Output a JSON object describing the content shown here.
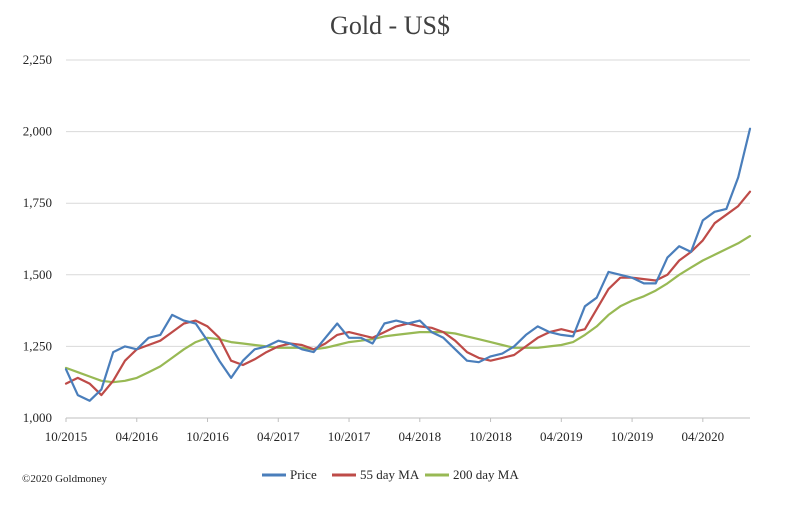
{
  "chart_data": {
    "type": "line",
    "title": "Gold - US$",
    "xlabel": "",
    "ylabel": "",
    "ylim": [
      1000,
      2250
    ],
    "y_ticks": [
      1000,
      1250,
      1500,
      1750,
      2000,
      2250
    ],
    "y_tick_labels": [
      "1,000",
      "1,250",
      "1,500",
      "1,750",
      "2,000",
      "2,250"
    ],
    "x_tick_labels": [
      "10/2015",
      "04/2016",
      "10/2016",
      "04/2017",
      "10/2017",
      "04/2018",
      "10/2018",
      "04/2019",
      "10/2019",
      "04/2020"
    ],
    "x_range_months": [
      "10/2015",
      "08/2020"
    ],
    "grid": "horizontal",
    "legend_position": "bottom",
    "colors": {
      "price": "#4a7ebb",
      "ma55": "#be4b48",
      "ma200": "#98b954"
    },
    "series": [
      {
        "name": "Price",
        "x": [
          "10/2015",
          "11/2015",
          "12/2015",
          "01/2016",
          "02/2016",
          "03/2016",
          "04/2016",
          "05/2016",
          "06/2016",
          "07/2016",
          "08/2016",
          "09/2016",
          "10/2016",
          "11/2016",
          "12/2016",
          "01/2017",
          "02/2017",
          "03/2017",
          "04/2017",
          "05/2017",
          "06/2017",
          "07/2017",
          "08/2017",
          "09/2017",
          "10/2017",
          "11/2017",
          "12/2017",
          "01/2018",
          "02/2018",
          "03/2018",
          "04/2018",
          "05/2018",
          "06/2018",
          "07/2018",
          "08/2018",
          "09/2018",
          "10/2018",
          "11/2018",
          "12/2018",
          "01/2019",
          "02/2019",
          "03/2019",
          "04/2019",
          "05/2019",
          "06/2019",
          "07/2019",
          "08/2019",
          "09/2019",
          "10/2019",
          "11/2019",
          "12/2019",
          "01/2020",
          "02/2020",
          "03/2020",
          "04/2020",
          "05/2020",
          "06/2020",
          "07/2020",
          "08/2020"
        ],
        "values": [
          1170,
          1080,
          1060,
          1100,
          1230,
          1250,
          1240,
          1280,
          1290,
          1360,
          1340,
          1330,
          1270,
          1200,
          1140,
          1200,
          1240,
          1250,
          1270,
          1260,
          1240,
          1230,
          1280,
          1330,
          1280,
          1280,
          1260,
          1330,
          1340,
          1330,
          1340,
          1300,
          1280,
          1240,
          1200,
          1195,
          1215,
          1225,
          1250,
          1290,
          1320,
          1300,
          1290,
          1285,
          1390,
          1420,
          1510,
          1500,
          1490,
          1470,
          1470,
          1560,
          1600,
          1580,
          1690,
          1720,
          1730,
          1840,
          2010
        ]
      },
      {
        "name": "55 day MA",
        "x": [
          "10/2015",
          "11/2015",
          "12/2015",
          "01/2016",
          "02/2016",
          "03/2016",
          "04/2016",
          "05/2016",
          "06/2016",
          "07/2016",
          "08/2016",
          "09/2016",
          "10/2016",
          "11/2016",
          "12/2016",
          "01/2017",
          "02/2017",
          "03/2017",
          "04/2017",
          "05/2017",
          "06/2017",
          "07/2017",
          "08/2017",
          "09/2017",
          "10/2017",
          "11/2017",
          "12/2017",
          "01/2018",
          "02/2018",
          "03/2018",
          "04/2018",
          "05/2018",
          "06/2018",
          "07/2018",
          "08/2018",
          "09/2018",
          "10/2018",
          "11/2018",
          "12/2018",
          "01/2019",
          "02/2019",
          "03/2019",
          "04/2019",
          "05/2019",
          "06/2019",
          "07/2019",
          "08/2019",
          "09/2019",
          "10/2019",
          "11/2019",
          "12/2019",
          "01/2020",
          "02/2020",
          "03/2020",
          "04/2020",
          "05/2020",
          "06/2020",
          "07/2020",
          "08/2020"
        ],
        "values": [
          1120,
          1140,
          1120,
          1080,
          1130,
          1200,
          1240,
          1255,
          1270,
          1300,
          1330,
          1340,
          1320,
          1280,
          1200,
          1185,
          1205,
          1230,
          1250,
          1260,
          1255,
          1240,
          1260,
          1290,
          1300,
          1290,
          1280,
          1300,
          1320,
          1330,
          1320,
          1315,
          1300,
          1270,
          1230,
          1210,
          1200,
          1210,
          1220,
          1250,
          1280,
          1300,
          1310,
          1300,
          1310,
          1380,
          1450,
          1490,
          1490,
          1485,
          1480,
          1500,
          1550,
          1580,
          1620,
          1680,
          1710,
          1740,
          1790
        ]
      },
      {
        "name": "200 day MA",
        "x": [
          "10/2015",
          "11/2015",
          "12/2015",
          "01/2016",
          "02/2016",
          "03/2016",
          "04/2016",
          "05/2016",
          "06/2016",
          "07/2016",
          "08/2016",
          "09/2016",
          "10/2016",
          "11/2016",
          "12/2016",
          "01/2017",
          "02/2017",
          "03/2017",
          "04/2017",
          "05/2017",
          "06/2017",
          "07/2017",
          "08/2017",
          "09/2017",
          "10/2017",
          "11/2017",
          "12/2017",
          "01/2018",
          "02/2018",
          "03/2018",
          "04/2018",
          "05/2018",
          "06/2018",
          "07/2018",
          "08/2018",
          "09/2018",
          "10/2018",
          "11/2018",
          "12/2018",
          "01/2019",
          "02/2019",
          "03/2019",
          "04/2019",
          "05/2019",
          "06/2019",
          "07/2019",
          "08/2019",
          "09/2019",
          "10/2019",
          "11/2019",
          "12/2019",
          "01/2020",
          "02/2020",
          "03/2020",
          "04/2020",
          "05/2020",
          "06/2020",
          "07/2020",
          "08/2020"
        ],
        "values": [
          1175,
          1160,
          1145,
          1130,
          1125,
          1130,
          1140,
          1160,
          1180,
          1210,
          1240,
          1265,
          1280,
          1275,
          1265,
          1260,
          1255,
          1250,
          1245,
          1245,
          1245,
          1240,
          1245,
          1255,
          1265,
          1270,
          1275,
          1285,
          1290,
          1295,
          1300,
          1300,
          1300,
          1295,
          1285,
          1275,
          1265,
          1255,
          1245,
          1245,
          1245,
          1250,
          1255,
          1265,
          1290,
          1320,
          1360,
          1390,
          1410,
          1425,
          1445,
          1470,
          1500,
          1525,
          1550,
          1570,
          1590,
          1610,
          1635
        ]
      }
    ]
  },
  "copyright": "©2020 Goldmoney"
}
